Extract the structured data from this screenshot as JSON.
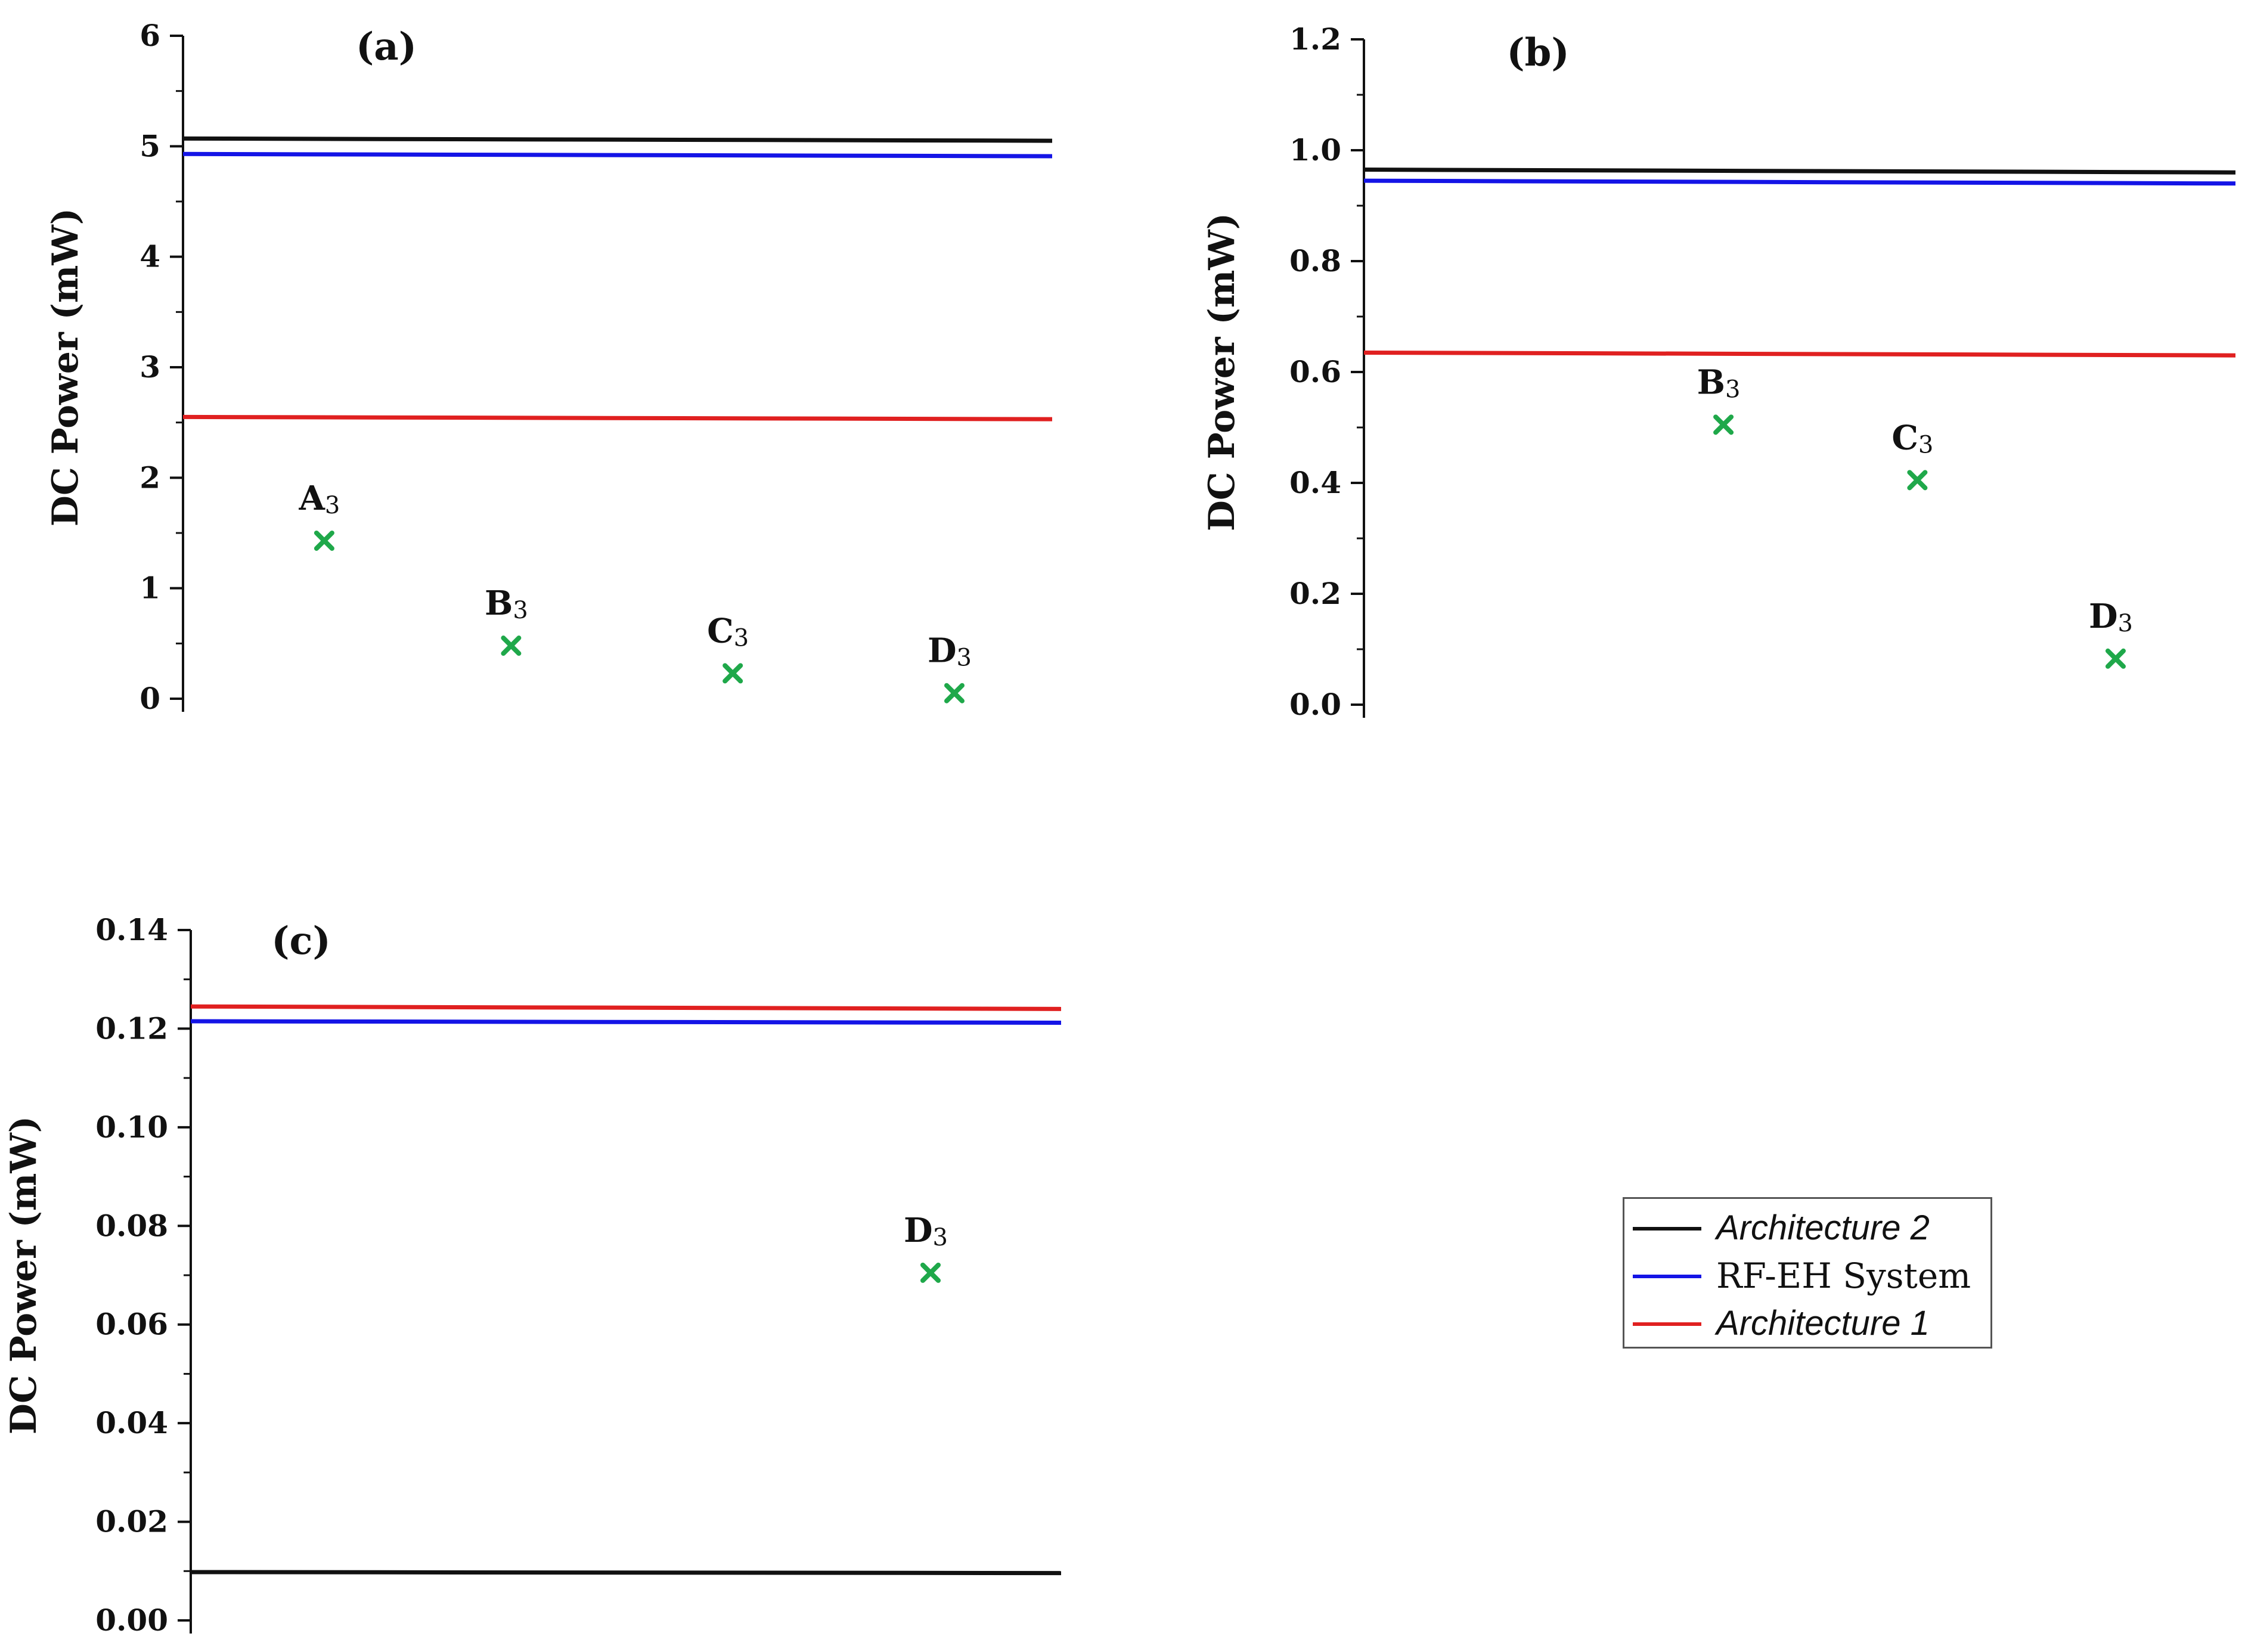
{
  "series_styles": [
    {
      "name": "Architecture 2",
      "color": "#111111"
    },
    {
      "name": "RF-EH System",
      "color": "#1414e6"
    },
    {
      "name": "Architecture 1",
      "color": "#e02020"
    }
  ],
  "marker_color": "#1fa84a",
  "legend": {
    "entries": [
      {
        "label": "Architecture 2",
        "color": "#111111"
      },
      {
        "label": "RF-EH System",
        "color": "#1414e6"
      },
      {
        "label": "Architecture 1",
        "color": "#e02020"
      }
    ]
  },
  "chart_data": [
    {
      "type": "line",
      "panel": "(a)",
      "title": "(a)",
      "xlabel": "",
      "ylabel": "DC Power (mW)",
      "ylim": [
        0,
        6
      ],
      "yticks": [
        "0",
        "1",
        "2",
        "3",
        "4",
        "5",
        "6"
      ],
      "xlim": [
        0,
        4
      ],
      "series": [
        {
          "name": "Architecture 2",
          "color": "#111111",
          "x": [
            0,
            4
          ],
          "values": [
            5.07,
            5.05
          ]
        },
        {
          "name": "RF-EH System",
          "color": "#1414e6",
          "x": [
            0,
            4
          ],
          "values": [
            4.93,
            4.91
          ]
        },
        {
          "name": "Architecture 1",
          "color": "#e02020",
          "x": [
            0,
            4
          ],
          "values": [
            2.55,
            2.53
          ]
        }
      ],
      "points": [
        {
          "label": "A",
          "sub": "3",
          "x": 0.65,
          "y": 1.43
        },
        {
          "label": "B",
          "sub": "3",
          "x": 1.51,
          "y": 0.48
        },
        {
          "label": "C",
          "sub": "3",
          "x": 2.53,
          "y": 0.23
        },
        {
          "label": "D",
          "sub": "3",
          "x": 3.55,
          "y": 0.05
        }
      ]
    },
    {
      "type": "line",
      "panel": "(b)",
      "title": "(b)",
      "xlabel": "",
      "ylabel": "DC Power (mW)",
      "ylim": [
        0,
        1.2
      ],
      "yticks": [
        "0.0",
        "0.2",
        "0.4",
        "0.6",
        "0.8",
        "1.0",
        "1.2"
      ],
      "xlim": [
        0,
        4
      ],
      "series": [
        {
          "name": "Architecture 2",
          "color": "#111111",
          "x": [
            0,
            4
          ],
          "values": [
            0.965,
            0.96
          ]
        },
        {
          "name": "RF-EH System",
          "color": "#1414e6",
          "x": [
            0,
            4
          ],
          "values": [
            0.945,
            0.94
          ]
        },
        {
          "name": "Architecture 1",
          "color": "#e02020",
          "x": [
            0,
            4
          ],
          "values": [
            0.635,
            0.63
          ]
        }
      ],
      "points": [
        {
          "label": "B",
          "sub": "3",
          "x": 1.65,
          "y": 0.505
        },
        {
          "label": "C",
          "sub": "3",
          "x": 2.54,
          "y": 0.405
        },
        {
          "label": "D",
          "sub": "3",
          "x": 3.45,
          "y": 0.083
        }
      ]
    },
    {
      "type": "line",
      "panel": "(c)",
      "title": "(c)",
      "xlabel": "",
      "ylabel": "DC Power (mW)",
      "ylim": [
        0,
        0.14
      ],
      "yticks": [
        "0.00",
        "0.02",
        "0.04",
        "0.06",
        "0.08",
        "0.10",
        "0.12",
        "0.14"
      ],
      "xlim": [
        0,
        4
      ],
      "series": [
        {
          "name": "Architecture 1",
          "color": "#e02020",
          "x": [
            0,
            4
          ],
          "values": [
            0.1245,
            0.124
          ]
        },
        {
          "name": "RF-EH System",
          "color": "#1414e6",
          "x": [
            0,
            4
          ],
          "values": [
            0.1215,
            0.1212
          ]
        },
        {
          "name": "Architecture 2",
          "color": "#111111",
          "x": [
            0,
            4
          ],
          "values": [
            0.0098,
            0.0096
          ]
        }
      ],
      "points": [
        {
          "label": "D",
          "sub": "3",
          "x": 3.4,
          "y": 0.0705
        }
      ]
    }
  ]
}
